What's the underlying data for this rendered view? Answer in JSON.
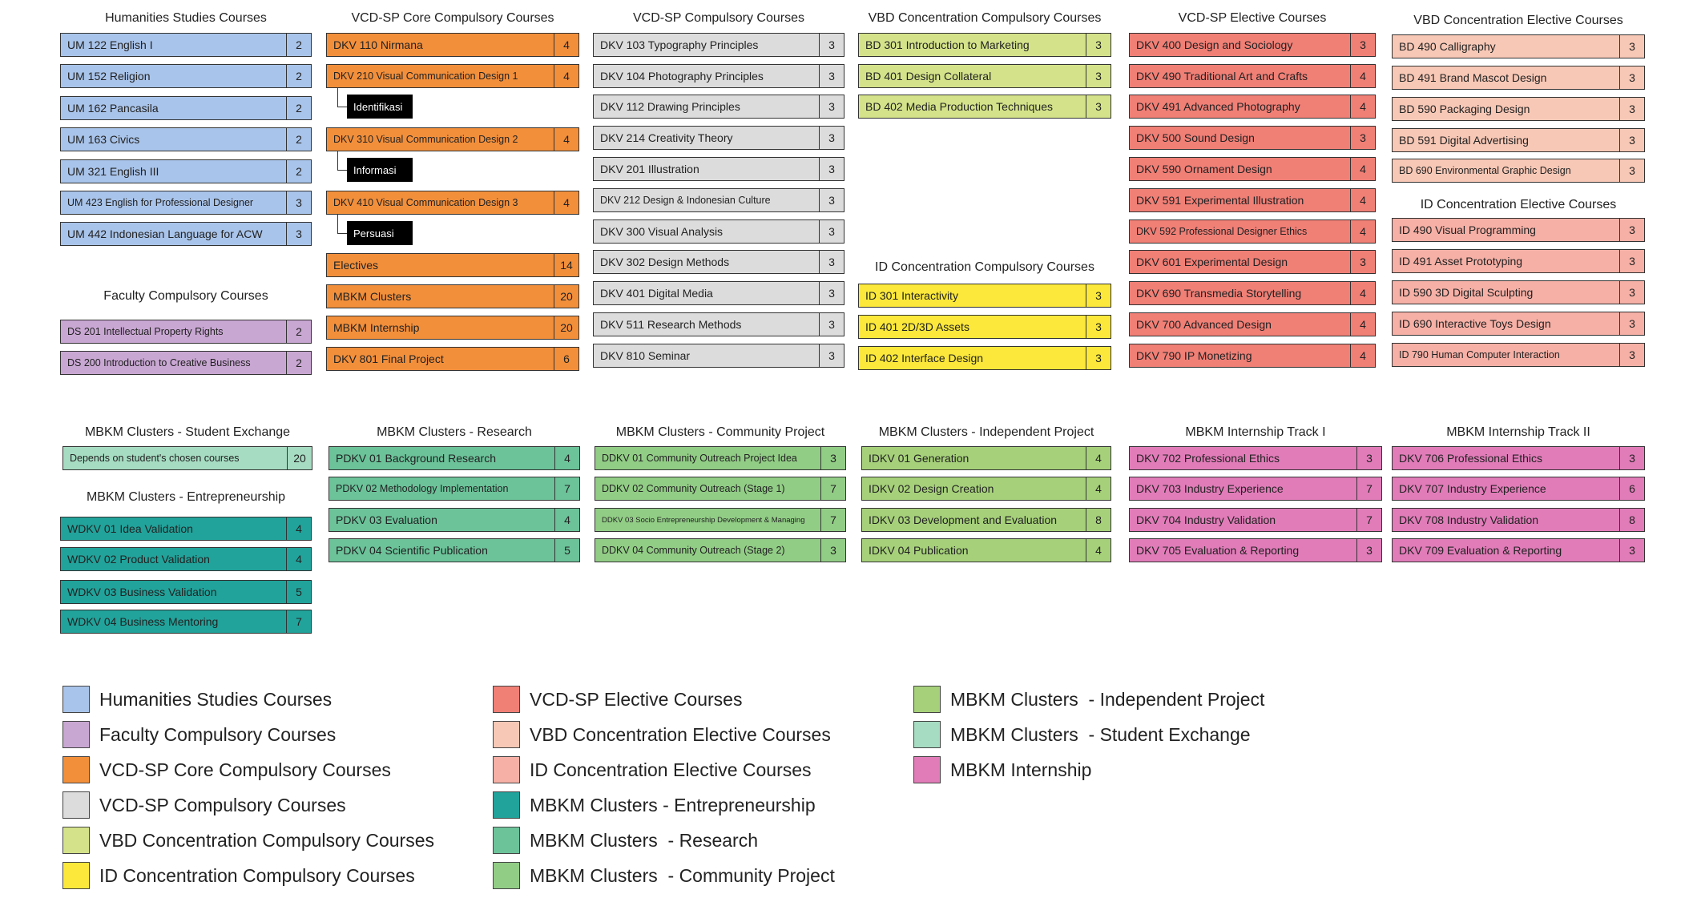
{
  "groups": [
    {
      "title": "Humanities Studies Courses",
      "color": "#a9c4ea",
      "courses": [
        {
          "name": "UM 122 English I",
          "credits": "2"
        },
        {
          "name": "UM 152 Religion",
          "credits": "2"
        },
        {
          "name": "UM 162 Pancasila",
          "credits": "2"
        },
        {
          "name": "UM 163 Civics",
          "credits": "2"
        },
        {
          "name": "UM 321 English III",
          "credits": "2"
        },
        {
          "name": "UM 423 English for Professional Designer",
          "credits": "3"
        },
        {
          "name": "UM 442 Indonesian Language for ACW",
          "credits": "3"
        }
      ]
    },
    {
      "title": "Faculty Compulsory Courses",
      "color": "#c9a7d3",
      "courses": [
        {
          "name": "DS 201 Intellectual Property Rights",
          "credits": "2"
        },
        {
          "name": "DS 200 Introduction to Creative Business",
          "credits": "2"
        }
      ]
    },
    {
      "title": "VCD-SP Core Compulsory Courses",
      "color": "#f28f3b",
      "courses": [
        {
          "name": "DKV 110 Nirmana",
          "credits": "4"
        },
        {
          "name": "DKV 210 Visual Communication Design 1",
          "credits": "4"
        },
        {
          "name": "DKV 310 Visual Communication Design 2",
          "credits": "4"
        },
        {
          "name": "DKV 410 Visual Communication Design 3",
          "credits": "4"
        },
        {
          "name": "Electives",
          "credits": "14"
        },
        {
          "name": "MBKM Clusters",
          "credits": "20"
        },
        {
          "name": "MBKM Internship",
          "credits": "20"
        },
        {
          "name": "DKV 801 Final Project",
          "credits": "6"
        }
      ],
      "subtopics": [
        "Identifikasi",
        "Informasi",
        "Persuasi"
      ]
    },
    {
      "title": "VCD-SP Compulsory Courses",
      "color": "#dcdcdc",
      "courses": [
        {
          "name": "DKV 103 Typography Principles",
          "credits": "3"
        },
        {
          "name": "DKV 104 Photography Principles",
          "credits": "3"
        },
        {
          "name": "DKV 112 Drawing Principles",
          "credits": "3"
        },
        {
          "name": "DKV 214 Creativity Theory",
          "credits": "3"
        },
        {
          "name": "DKV 201 Illustration",
          "credits": "3"
        },
        {
          "name": "DKV 212 Design & Indonesian Culture",
          "credits": "3"
        },
        {
          "name": "DKV 300 Visual Analysis",
          "credits": "3"
        },
        {
          "name": "DKV 302 Design Methods",
          "credits": "3"
        },
        {
          "name": "DKV 401 Digital Media",
          "credits": "3"
        },
        {
          "name": "DKV 511 Research Methods",
          "credits": "3"
        },
        {
          "name": "DKV 810 Seminar",
          "credits": "3"
        }
      ]
    },
    {
      "title": "VBD Concentration Compulsory Courses",
      "color": "#d4e38a",
      "courses": [
        {
          "name": "BD 301 Introduction to Marketing",
          "credits": "3"
        },
        {
          "name": "BD 401 Design Collateral",
          "credits": "3"
        },
        {
          "name": "BD 402 Media Production Techniques",
          "credits": "3"
        }
      ]
    },
    {
      "title": "ID Concentration Compulsory Courses",
      "color": "#fbe83a",
      "courses": [
        {
          "name": "ID 301 Interactivity",
          "credits": "3"
        },
        {
          "name": "ID 401 2D/3D Assets",
          "credits": "3"
        },
        {
          "name": "ID 402 Interface Design",
          "credits": "3"
        }
      ]
    },
    {
      "title": "VCD-SP Elective Courses",
      "color": "#f07f76",
      "courses": [
        {
          "name": "DKV 400 Design and Sociology",
          "credits": "3"
        },
        {
          "name": "DKV 490 Traditional Art and Crafts",
          "credits": "4"
        },
        {
          "name": "DKV 491 Advanced Photography",
          "credits": "4"
        },
        {
          "name": "DKV 500 Sound Design",
          "credits": "3"
        },
        {
          "name": "DKV 590 Ornament Design",
          "credits": "4"
        },
        {
          "name": "DKV 591 Experimental Illustration",
          "credits": "4"
        },
        {
          "name": "DKV 592 Professional Designer Ethics",
          "credits": "4"
        },
        {
          "name": "DKV 601 Experimental Design",
          "credits": "3"
        },
        {
          "name": "DKV 690 Transmedia Storytelling",
          "credits": "4"
        },
        {
          "name": "DKV 700 Advanced Design",
          "credits": "4"
        },
        {
          "name": "DKV 790 IP Monetizing",
          "credits": "4"
        }
      ]
    },
    {
      "title": "VBD Concentration Elective Courses",
      "color": "#f8c8b6",
      "courses": [
        {
          "name": "BD 490 Calligraphy",
          "credits": "3"
        },
        {
          "name": "BD 491 Brand Mascot Design",
          "credits": "3"
        },
        {
          "name": "BD 590 Packaging Design",
          "credits": "3"
        },
        {
          "name": "BD 591 Digital Advertising",
          "credits": "3"
        },
        {
          "name": "BD 690 Environmental Graphic Design",
          "credits": "3"
        }
      ]
    },
    {
      "title": "ID Concentration Elective Courses",
      "color": "#f6b0a6",
      "courses": [
        {
          "name": "ID 490 Visual Programming",
          "credits": "3"
        },
        {
          "name": "ID 491 Asset Prototyping",
          "credits": "3"
        },
        {
          "name": "ID 590 3D Digital Sculpting",
          "credits": "3"
        },
        {
          "name": "ID 690 Interactive Toys Design",
          "credits": "3"
        },
        {
          "name": "ID 790 Human Computer Interaction",
          "credits": "3"
        }
      ]
    },
    {
      "title": "MBKM Clusters  - Student Exchange",
      "color": "#a6dcc2",
      "courses": [
        {
          "name": "Depends on student's chosen courses",
          "credits": "20"
        }
      ]
    },
    {
      "title": "MBKM Clusters  - Entrepreneurship",
      "color": "#21a39b",
      "courses": [
        {
          "name": "WDKV 01 Idea Validation",
          "credits": "4"
        },
        {
          "name": "WDKV 02 Product Validation",
          "credits": "4"
        },
        {
          "name": "WDKV 03 Business Validation",
          "credits": "5"
        },
        {
          "name": "WDKV 04 Business Mentoring",
          "credits": "7"
        }
      ]
    },
    {
      "title": "MBKM Clusters  - Research",
      "color": "#6cc39a",
      "courses": [
        {
          "name": "PDKV 01 Background Research",
          "credits": "4"
        },
        {
          "name": "PDKV 02 Methodology Implementation",
          "credits": "7"
        },
        {
          "name": "PDKV 03 Evaluation",
          "credits": "4"
        },
        {
          "name": "PDKV 04 Scientific Publication",
          "credits": "5"
        }
      ]
    },
    {
      "title": "MBKM Clusters  - Community Project",
      "color": "#92cd86",
      "courses": [
        {
          "name": "DDKV 01 Community Outreach Project Idea",
          "credits": "3"
        },
        {
          "name": "DDKV 02 Community Outreach (Stage 1)",
          "credits": "7"
        },
        {
          "name": "DDKV 03 Socio Entrepreneurship Development & Managing",
          "credits": "7"
        },
        {
          "name": "DDKV 04 Community Outreach (Stage 2)",
          "credits": "3"
        }
      ]
    },
    {
      "title": "MBKM Clusters  - Independent Project",
      "color": "#a6d17a",
      "courses": [
        {
          "name": "IDKV 01 Generation",
          "credits": "4"
        },
        {
          "name": "IDKV 02 Design Creation",
          "credits": "4"
        },
        {
          "name": "IDKV 03 Development and Evaluation",
          "credits": "8"
        },
        {
          "name": "IDKV 04 Publication",
          "credits": "4"
        }
      ]
    },
    {
      "title": "MBKM Internship Track I",
      "color": "#e17cb9",
      "courses": [
        {
          "name": "DKV 702 Professional Ethics",
          "credits": "3"
        },
        {
          "name": "DKV 703 Industry Experience",
          "credits": "7"
        },
        {
          "name": "DKV 704 Industry Validation",
          "credits": "7"
        },
        {
          "name": "DKV 705 Evaluation & Reporting",
          "credits": "3"
        }
      ]
    },
    {
      "title": "MBKM Internship Track II",
      "color": "#e17cb9",
      "courses": [
        {
          "name": "DKV 706 Professional Ethics",
          "credits": "3"
        },
        {
          "name": "DKV 707 Industry Experience",
          "credits": "6"
        },
        {
          "name": "DKV 708 Industry Validation",
          "credits": "8"
        },
        {
          "name": "DKV 709 Evaluation & Reporting",
          "credits": "3"
        }
      ]
    }
  ],
  "legend": [
    {
      "label": "Humanities Studies Courses",
      "color": "#a9c4ea"
    },
    {
      "label": "Faculty Compulsory Courses",
      "color": "#c9a7d3"
    },
    {
      "label": "VCD-SP Core Compulsory Courses",
      "color": "#f28f3b"
    },
    {
      "label": "VCD-SP Compulsory Courses",
      "color": "#dcdcdc"
    },
    {
      "label": "VBD Concentration Compulsory Courses",
      "color": "#d4e38a"
    },
    {
      "label": "ID Concentration Compulsory Courses",
      "color": "#fbe83a"
    },
    {
      "label": "VCD-SP Elective Courses",
      "color": "#f07f76"
    },
    {
      "label": "VBD Concentration Elective Courses",
      "color": "#f8c8b6"
    },
    {
      "label": "ID Concentration Elective Courses",
      "color": "#f6b0a6"
    },
    {
      "label": "MBKM Clusters - Entrepreneurship",
      "color": "#21a39b"
    },
    {
      "label": "MBKM Clusters  - Research",
      "color": "#6cc39a"
    },
    {
      "label": "MBKM Clusters  - Community Project",
      "color": "#92cd86"
    },
    {
      "label": "MBKM Clusters  - Independent Project",
      "color": "#a6d17a"
    },
    {
      "label": "MBKM Clusters  - Student Exchange",
      "color": "#a6dcc2"
    },
    {
      "label": "MBKM Internship",
      "color": "#e17cb9"
    }
  ]
}
